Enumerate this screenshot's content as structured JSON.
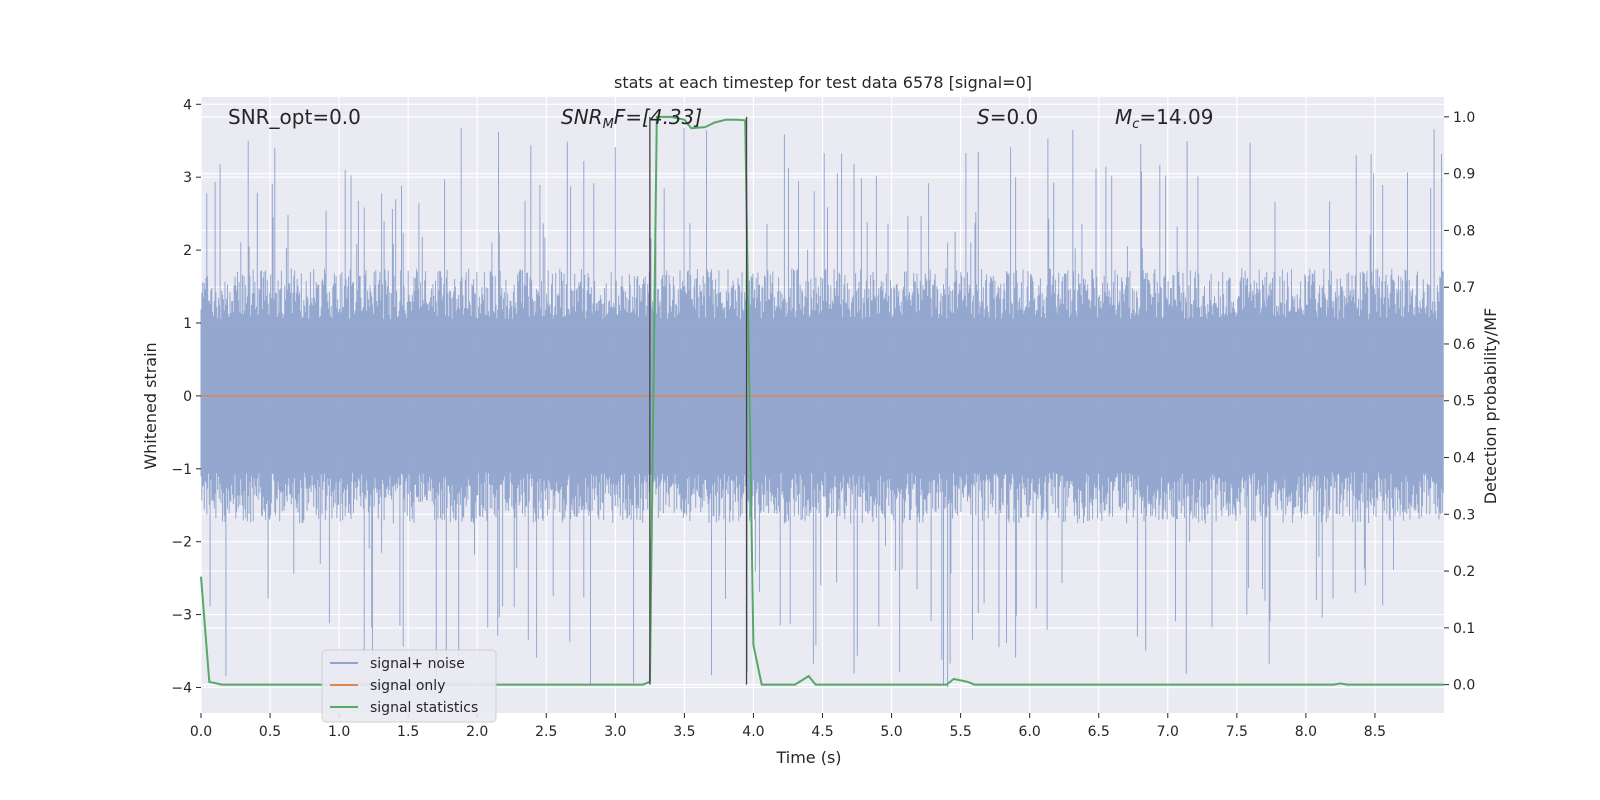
{
  "chart_data": {
    "type": "line",
    "title": "stats at each timestep for test data 6578 [signal=0]",
    "xlabel": "Time (s)",
    "ylabel_left": "Whitened strain",
    "ylabel_right": "Detection probability/MF",
    "xlim": [
      0.0,
      9.0
    ],
    "ylim_left": [
      -4.35,
      4.1
    ],
    "ylim_right": [
      -0.05,
      1.035
    ],
    "x_ticks": [
      "0.0",
      "0.5",
      "1.0",
      "1.5",
      "2.0",
      "2.5",
      "3.0",
      "3.5",
      "4.0",
      "4.5",
      "5.0",
      "5.5",
      "6.0",
      "6.5",
      "7.0",
      "7.5",
      "8.0",
      "8.5"
    ],
    "y_left_ticks": [
      "−4",
      "−3",
      "−2",
      "−1",
      "0",
      "1",
      "2",
      "3",
      "4"
    ],
    "y_right_ticks": [
      "0.0",
      "0.1",
      "0.2",
      "0.3",
      "0.4",
      "0.5",
      "0.6",
      "0.7",
      "0.8",
      "0.9",
      "1.0"
    ],
    "annotations": {
      "snr_opt": "SNR_opt=0.0",
      "snr_mf_base": "SNR",
      "snr_mf_sub": "M",
      "snr_mf_rest": "F=[4.33]",
      "s_italic": "S",
      "s_rest": "=0.0",
      "mc_base": "M",
      "mc_sub": "c",
      "mc_rest": "=14.09"
    },
    "vertical_markers_x": [
      3.25,
      3.95
    ],
    "series": [
      {
        "name": "signal+ noise",
        "color": "#8fa3cc",
        "axis": "left",
        "style": "dense-noise",
        "amplitude_typical": 1.4,
        "amplitude_peak": 3.7,
        "min_value": -4.0
      },
      {
        "name": "signal only",
        "color": "#dd8452",
        "axis": "left",
        "x": [
          0.0,
          9.0
        ],
        "values": [
          0.0,
          0.0
        ]
      },
      {
        "name": "signal statistics",
        "color": "#55a868",
        "axis": "right",
        "x": [
          0.0,
          0.06,
          0.15,
          0.5,
          1.0,
          2.0,
          3.0,
          3.2,
          3.25,
          3.3,
          3.4,
          3.5,
          3.55,
          3.65,
          3.72,
          3.8,
          3.88,
          3.94,
          4.0,
          4.06,
          4.1,
          4.3,
          4.4,
          4.45,
          4.6,
          5.0,
          5.4,
          5.45,
          5.55,
          5.6,
          6.0,
          7.0,
          8.0,
          8.2,
          8.25,
          8.3,
          9.0
        ],
        "values": [
          0.19,
          0.005,
          0.0,
          0.0,
          0.0,
          0.0,
          0.0,
          0.0,
          0.005,
          1.0,
          1.0,
          0.995,
          0.98,
          0.982,
          0.99,
          0.995,
          0.995,
          0.994,
          0.07,
          0.0,
          0.0,
          0.0,
          0.015,
          0.0,
          0.0,
          0.0,
          0.0,
          0.01,
          0.005,
          0.0,
          0.0,
          0.0,
          0.0,
          0.0,
          0.002,
          0.0,
          0.0
        ]
      }
    ],
    "legend_position": "lower-left",
    "grid": true
  }
}
